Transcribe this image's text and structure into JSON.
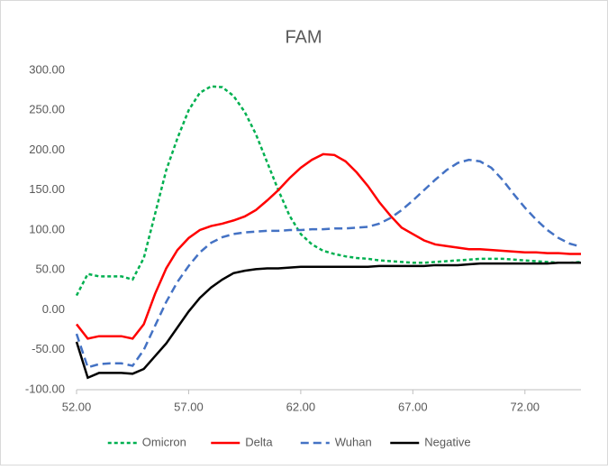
{
  "chart_data": {
    "type": "line",
    "title": "FAM",
    "x": [
      52,
      52.5,
      53,
      53.5,
      54,
      54.5,
      55,
      55.5,
      56,
      56.5,
      57,
      57.5,
      58,
      58.5,
      59,
      59.5,
      60,
      60.5,
      61,
      61.5,
      62,
      62.5,
      63,
      63.5,
      64,
      64.5,
      65,
      65.5,
      66,
      66.5,
      67,
      67.5,
      68,
      68.5,
      69,
      69.5,
      70,
      70.5,
      71,
      71.5,
      72,
      72.5,
      73,
      73.5,
      74,
      74.5
    ],
    "series": [
      {
        "name": "Omicron",
        "color": "#00b050",
        "dash": "4,3",
        "values": [
          18,
          45,
          42,
          42,
          42,
          38,
          65,
          120,
          175,
          215,
          250,
          272,
          280,
          279,
          268,
          248,
          220,
          185,
          150,
          118,
          95,
          82,
          74,
          70,
          67,
          65,
          64,
          62,
          61,
          60,
          59,
          59,
          60,
          61,
          62,
          63,
          64,
          64,
          64,
          63,
          62,
          61,
          60,
          59,
          59,
          60
        ]
      },
      {
        "name": "Delta",
        "color": "#ff0000",
        "dash": "none",
        "values": [
          -18,
          -36,
          -33,
          -33,
          -33,
          -36,
          -18,
          20,
          52,
          75,
          90,
          100,
          105,
          108,
          112,
          117,
          125,
          137,
          150,
          165,
          178,
          188,
          195,
          194,
          186,
          172,
          155,
          135,
          118,
          103,
          95,
          87,
          82,
          80,
          78,
          76,
          76,
          75,
          74,
          73,
          72,
          72,
          71,
          71,
          70,
          70
        ]
      },
      {
        "name": "Wuhan",
        "color": "#4472c4",
        "dash": "9,5",
        "values": [
          -30,
          -72,
          -68,
          -67,
          -67,
          -70,
          -50,
          -20,
          10,
          35,
          55,
          72,
          84,
          91,
          95,
          97,
          98,
          99,
          99,
          100,
          100,
          101,
          101,
          102,
          102,
          103,
          104,
          108,
          115,
          125,
          137,
          150,
          163,
          175,
          184,
          188,
          186,
          178,
          163,
          145,
          128,
          113,
          100,
          90,
          83,
          79
        ]
      },
      {
        "name": "Negative",
        "color": "#000000",
        "dash": "none",
        "values": [
          -40,
          -85,
          -79,
          -79,
          -79,
          -80,
          -74,
          -58,
          -42,
          -22,
          -2,
          15,
          28,
          38,
          46,
          49,
          51,
          52,
          52,
          53,
          54,
          54,
          54,
          54,
          54,
          54,
          54,
          55,
          55,
          55,
          55,
          55,
          56,
          56,
          56,
          57,
          58,
          58,
          58,
          58,
          58,
          58,
          58,
          59,
          59,
          59
        ]
      }
    ],
    "xlim": [
      52,
      74.5
    ],
    "xticks": [
      {
        "value": 52,
        "label": "52.00"
      },
      {
        "value": 57,
        "label": "57.00"
      },
      {
        "value": 62,
        "label": "62.00"
      },
      {
        "value": 67,
        "label": "67.00"
      },
      {
        "value": 72,
        "label": "72.00"
      }
    ],
    "ylim": [
      -100,
      300
    ],
    "yticks": [
      {
        "value": -100,
        "label": "-100.00"
      },
      {
        "value": -50,
        "label": "-50.00"
      },
      {
        "value": 0,
        "label": "0.00"
      },
      {
        "value": 50,
        "label": "50.00"
      },
      {
        "value": 100,
        "label": "100.00"
      },
      {
        "value": 150,
        "label": "150.00"
      },
      {
        "value": 200,
        "label": "200.00"
      },
      {
        "value": 250,
        "label": "250.00"
      },
      {
        "value": 300,
        "label": "300.00"
      }
    ],
    "grid": false,
    "legend": "bottom"
  }
}
